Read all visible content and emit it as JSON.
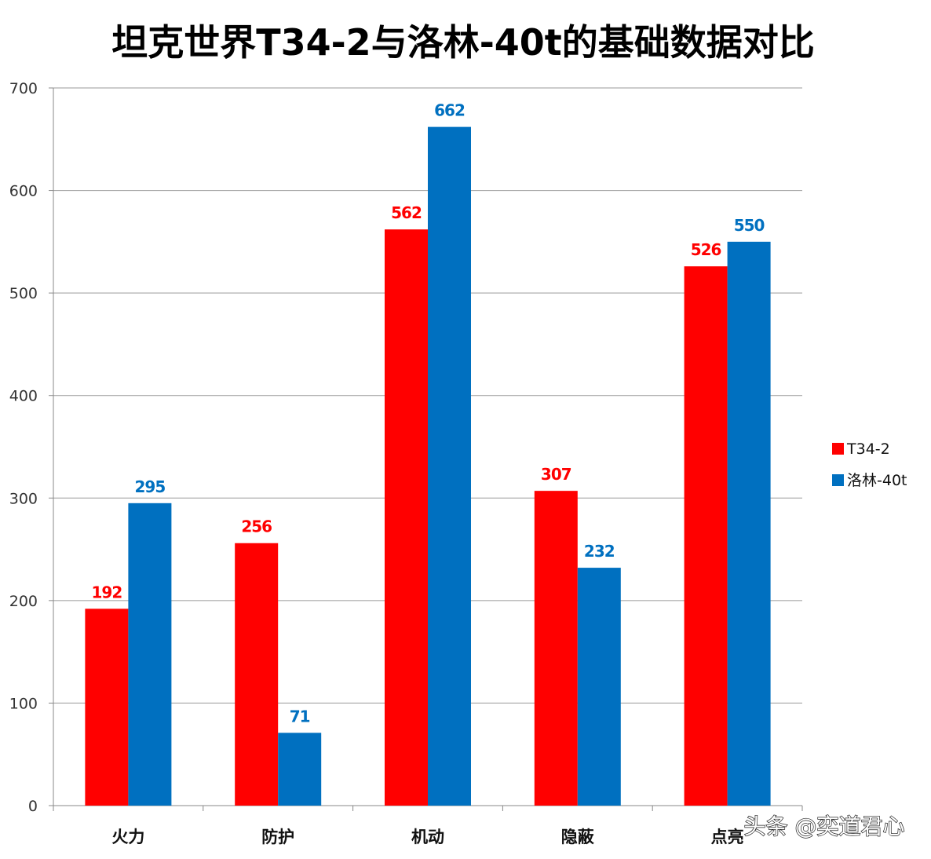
{
  "chart_data": {
    "type": "bar",
    "title": "坦克世界T34-2与洛林-40t的基础数据对比",
    "categories": [
      "火力",
      "防护",
      "机动",
      "隐蔽",
      "点亮"
    ],
    "series": [
      {
        "name": "T34-2",
        "values": [
          192,
          256,
          562,
          307,
          526
        ],
        "color": "#ff0000"
      },
      {
        "name": "洛林-40t",
        "values": [
          295,
          71,
          662,
          232,
          550
        ],
        "color": "#0070c0"
      }
    ],
    "ylim": [
      0,
      700
    ],
    "yticks": [
      0,
      100,
      200,
      300,
      400,
      500,
      600,
      700
    ],
    "grid": true,
    "legend": "right",
    "data_labels": true
  },
  "watermark": "头条 @奕道君心"
}
